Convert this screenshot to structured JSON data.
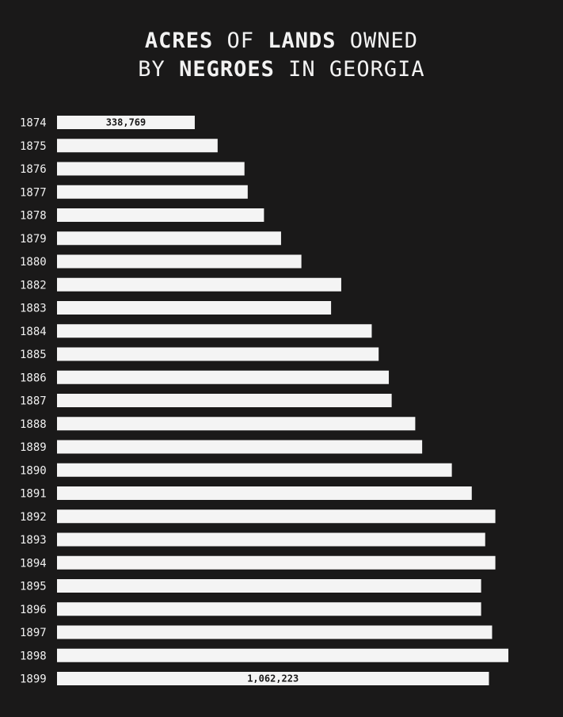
{
  "colors": {
    "background": "#1a1919",
    "bar": "#f4f4f4",
    "text": "#f0f0f0"
  },
  "title": {
    "line1": [
      {
        "text": "ACRES",
        "weight": "bold"
      },
      {
        "text": " OF ",
        "weight": "light"
      },
      {
        "text": "LANDS",
        "weight": "bold"
      },
      {
        "text": " OWNED",
        "weight": "light"
      }
    ],
    "line2": [
      {
        "text": "BY ",
        "weight": "light"
      },
      {
        "text": "NEGROES",
        "weight": "bold"
      },
      {
        "text": " IN GEORGIA",
        "weight": "light"
      }
    ]
  },
  "chart_data": {
    "type": "bar",
    "orientation": "horizontal",
    "title": "ACRES OF LANDS OWNED BY NEGROES IN GEORGIA",
    "categories": [
      "1874",
      "1875",
      "1876",
      "1877",
      "1878",
      "1879",
      "1880",
      "1882",
      "1883",
      "1884",
      "1885",
      "1886",
      "1887",
      "1888",
      "1889",
      "1890",
      "1891",
      "1892",
      "1893",
      "1894",
      "1895",
      "1896",
      "1897",
      "1898",
      "1899"
    ],
    "values": [
      338769,
      395000,
      461000,
      469000,
      509000,
      551000,
      601000,
      699000,
      674000,
      774000,
      791000,
      816000,
      823000,
      881000,
      898000,
      971000,
      1020000,
      1078000,
      1053000,
      1078000,
      1043000,
      1043000,
      1070000,
      1110000,
      1062223
    ],
    "data_labels": [
      {
        "index": 0,
        "text": "338,769"
      },
      {
        "index": 24,
        "text": "1,062,223"
      }
    ],
    "xlim": [
      0,
      1110000
    ],
    "axes_visible": false,
    "grid": false,
    "legend": "none"
  }
}
